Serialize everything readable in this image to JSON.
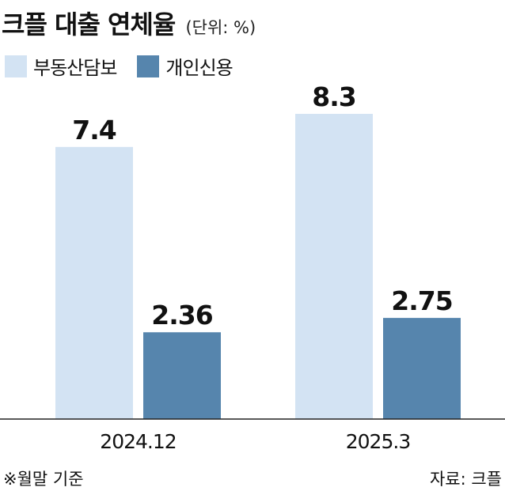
{
  "title": "크플 대출 연체율",
  "unit": "(단위: %)",
  "footnote": "※월말 기준",
  "source": "자료: 크플",
  "colors": {
    "real_estate": "#d3e3f3",
    "personal": "#5685ad"
  },
  "chart_data": {
    "type": "bar",
    "categories": [
      "2024.12",
      "2025.3"
    ],
    "series": [
      {
        "name": "부동산담보",
        "values": [
          7.4,
          8.3
        ],
        "labels": [
          "7.4",
          "8.3"
        ]
      },
      {
        "name": "개인신용",
        "values": [
          2.36,
          2.75
        ],
        "labels": [
          "2.36",
          "2.75"
        ]
      }
    ],
    "ylim": [
      0,
      8.3
    ]
  }
}
